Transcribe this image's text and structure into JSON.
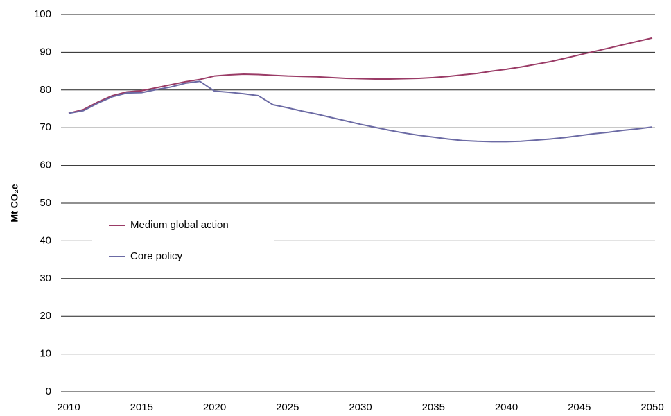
{
  "chart_data": {
    "type": "line",
    "y_label": "Mt CO₂e",
    "x": [
      2010,
      2011,
      2012,
      2013,
      2014,
      2015,
      2016,
      2017,
      2018,
      2019,
      2020,
      2021,
      2022,
      2023,
      2024,
      2025,
      2026,
      2027,
      2028,
      2029,
      2030,
      2031,
      2032,
      2033,
      2034,
      2035,
      2036,
      2037,
      2038,
      2039,
      2040,
      2041,
      2042,
      2043,
      2044,
      2045,
      2046,
      2047,
      2048,
      2049,
      2050
    ],
    "series": [
      {
        "name": "Medium global action",
        "color": "#9a3b66",
        "values": [
          73.8,
          74.8,
          76.8,
          78.5,
          79.5,
          79.8,
          80.6,
          81.4,
          82.2,
          82.8,
          83.7,
          84.0,
          84.2,
          84.1,
          83.9,
          83.7,
          83.6,
          83.5,
          83.3,
          83.1,
          83.0,
          82.9,
          82.9,
          83.0,
          83.1,
          83.3,
          83.6,
          84.0,
          84.4,
          85.0,
          85.5,
          86.1,
          86.8,
          87.5,
          88.4,
          89.3,
          90.2,
          91.1,
          92.0,
          92.9,
          93.8
        ]
      },
      {
        "name": "Core policy",
        "color": "#6b6aa4",
        "values": [
          73.8,
          74.5,
          76.5,
          78.2,
          79.2,
          79.3,
          80.1,
          80.8,
          81.8,
          82.3,
          79.7,
          79.4,
          79.0,
          78.5,
          76.1,
          75.3,
          74.4,
          73.6,
          72.7,
          71.8,
          70.9,
          70.1,
          69.3,
          68.6,
          68.0,
          67.5,
          67.0,
          66.6,
          66.4,
          66.3,
          66.3,
          66.4,
          66.7,
          67.0,
          67.4,
          67.9,
          68.4,
          68.8,
          69.3,
          69.7,
          70.2
        ]
      }
    ],
    "xlim": [
      2010,
      2050
    ],
    "xticks": [
      2010,
      2015,
      2020,
      2025,
      2030,
      2035,
      2040,
      2045,
      2050
    ],
    "ylim": [
      0,
      100
    ],
    "yticks": [
      0,
      10,
      20,
      30,
      40,
      50,
      60,
      70,
      80,
      90,
      100
    ],
    "grid": true
  }
}
